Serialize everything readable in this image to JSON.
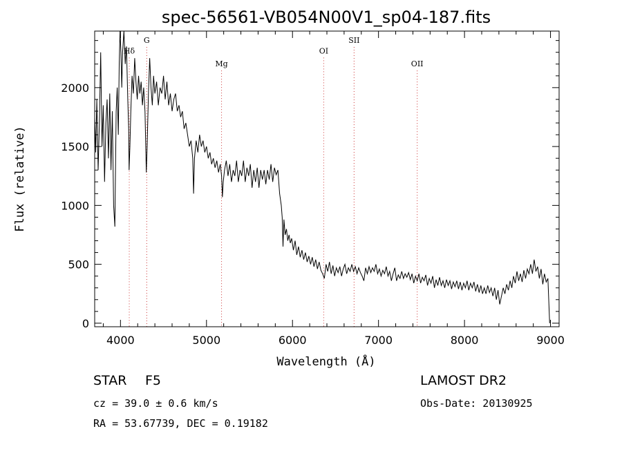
{
  "chart_data": {
    "type": "line",
    "title": "spec-56561-VB054N00V1_sp04-187.fits",
    "xlabel": "Wavelength (Å)",
    "ylabel": "Flux (relative)",
    "xlim": [
      3700,
      9100
    ],
    "ylim": [
      -30,
      2480
    ],
    "xticks": [
      4000,
      5000,
      6000,
      7000,
      8000,
      9000
    ],
    "yticks": [
      0,
      500,
      1000,
      1500,
      2000
    ],
    "grid": false,
    "series": [
      {
        "values": [
          [
            3700,
            1750
          ],
          [
            3712,
            1450
          ],
          [
            3725,
            1900
          ],
          [
            3740,
            1300
          ],
          [
            3755,
            1700
          ],
          [
            3770,
            2300
          ],
          [
            3785,
            1500
          ],
          [
            3800,
            1850
          ],
          [
            3815,
            1200
          ],
          [
            3830,
            1700
          ],
          [
            3845,
            1900
          ],
          [
            3860,
            1400
          ],
          [
            3875,
            1950
          ],
          [
            3890,
            1300
          ],
          [
            3905,
            1800
          ],
          [
            3920,
            1000
          ],
          [
            3935,
            820
          ],
          [
            3950,
            1800
          ],
          [
            3962,
            2000
          ],
          [
            3975,
            1600
          ],
          [
            3985,
            2200
          ],
          [
            3995,
            2480
          ],
          [
            4005,
            2300
          ],
          [
            4015,
            2000
          ],
          [
            4025,
            2300
          ],
          [
            4040,
            2480
          ],
          [
            4055,
            2200
          ],
          [
            4070,
            2350
          ],
          [
            4085,
            1900
          ],
          [
            4095,
            1650
          ],
          [
            4100,
            1300
          ],
          [
            4110,
            1500
          ],
          [
            4120,
            1800
          ],
          [
            4135,
            2100
          ],
          [
            4150,
            1950
          ],
          [
            4165,
            2250
          ],
          [
            4180,
            2050
          ],
          [
            4195,
            1900
          ],
          [
            4210,
            2100
          ],
          [
            4225,
            1950
          ],
          [
            4240,
            2050
          ],
          [
            4255,
            1850
          ],
          [
            4270,
            2000
          ],
          [
            4285,
            1800
          ],
          [
            4300,
            1280
          ],
          [
            4310,
            1500
          ],
          [
            4325,
            1950
          ],
          [
            4340,
            2250
          ],
          [
            4355,
            2000
          ],
          [
            4370,
            1850
          ],
          [
            4385,
            2100
          ],
          [
            4400,
            1950
          ],
          [
            4420,
            2050
          ],
          [
            4440,
            1850
          ],
          [
            4460,
            2000
          ],
          [
            4480,
            1950
          ],
          [
            4500,
            2100
          ],
          [
            4520,
            1900
          ],
          [
            4540,
            2050
          ],
          [
            4560,
            1850
          ],
          [
            4580,
            1950
          ],
          [
            4600,
            1800
          ],
          [
            4620,
            1900
          ],
          [
            4640,
            1950
          ],
          [
            4660,
            1800
          ],
          [
            4680,
            1850
          ],
          [
            4700,
            1750
          ],
          [
            4720,
            1800
          ],
          [
            4740,
            1650
          ],
          [
            4760,
            1700
          ],
          [
            4780,
            1600
          ],
          [
            4800,
            1500
          ],
          [
            4820,
            1550
          ],
          [
            4840,
            1400
          ],
          [
            4850,
            1100
          ],
          [
            4860,
            1400
          ],
          [
            4880,
            1550
          ],
          [
            4900,
            1450
          ],
          [
            4920,
            1600
          ],
          [
            4940,
            1500
          ],
          [
            4960,
            1550
          ],
          [
            4980,
            1450
          ],
          [
            5000,
            1500
          ],
          [
            5020,
            1400
          ],
          [
            5040,
            1450
          ],
          [
            5060,
            1350
          ],
          [
            5080,
            1400
          ],
          [
            5100,
            1320
          ],
          [
            5120,
            1380
          ],
          [
            5140,
            1280
          ],
          [
            5160,
            1350
          ],
          [
            5175,
            1250
          ],
          [
            5185,
            1070
          ],
          [
            5195,
            1200
          ],
          [
            5210,
            1300
          ],
          [
            5230,
            1380
          ],
          [
            5250,
            1250
          ],
          [
            5270,
            1350
          ],
          [
            5290,
            1200
          ],
          [
            5310,
            1300
          ],
          [
            5330,
            1250
          ],
          [
            5350,
            1380
          ],
          [
            5370,
            1200
          ],
          [
            5390,
            1300
          ],
          [
            5410,
            1250
          ],
          [
            5430,
            1380
          ],
          [
            5450,
            1200
          ],
          [
            5470,
            1320
          ],
          [
            5490,
            1250
          ],
          [
            5510,
            1350
          ],
          [
            5530,
            1150
          ],
          [
            5550,
            1300
          ],
          [
            5570,
            1200
          ],
          [
            5590,
            1320
          ],
          [
            5610,
            1150
          ],
          [
            5630,
            1300
          ],
          [
            5650,
            1220
          ],
          [
            5670,
            1300
          ],
          [
            5690,
            1180
          ],
          [
            5710,
            1300
          ],
          [
            5730,
            1220
          ],
          [
            5750,
            1350
          ],
          [
            5770,
            1200
          ],
          [
            5790,
            1320
          ],
          [
            5810,
            1260
          ],
          [
            5830,
            1300
          ],
          [
            5850,
            1100
          ],
          [
            5870,
            1000
          ],
          [
            5880,
            900
          ],
          [
            5890,
            650
          ],
          [
            5900,
            880
          ],
          [
            5915,
            750
          ],
          [
            5930,
            800
          ],
          [
            5945,
            700
          ],
          [
            5960,
            750
          ],
          [
            5975,
            680
          ],
          [
            5990,
            720
          ],
          [
            6010,
            620
          ],
          [
            6030,
            700
          ],
          [
            6050,
            580
          ],
          [
            6070,
            650
          ],
          [
            6090,
            560
          ],
          [
            6110,
            620
          ],
          [
            6130,
            540
          ],
          [
            6150,
            600
          ],
          [
            6170,
            520
          ],
          [
            6190,
            570
          ],
          [
            6210,
            500
          ],
          [
            6230,
            560
          ],
          [
            6250,
            480
          ],
          [
            6270,
            540
          ],
          [
            6290,
            460
          ],
          [
            6310,
            520
          ],
          [
            6330,
            450
          ],
          [
            6350,
            420
          ],
          [
            6370,
            380
          ],
          [
            6390,
            500
          ],
          [
            6410,
            440
          ],
          [
            6430,
            520
          ],
          [
            6450,
            420
          ],
          [
            6470,
            490
          ],
          [
            6490,
            400
          ],
          [
            6510,
            470
          ],
          [
            6530,
            430
          ],
          [
            6550,
            480
          ],
          [
            6570,
            400
          ],
          [
            6590,
            460
          ],
          [
            6610,
            500
          ],
          [
            6630,
            420
          ],
          [
            6650,
            470
          ],
          [
            6670,
            440
          ],
          [
            6690,
            500
          ],
          [
            6710,
            440
          ],
          [
            6730,
            480
          ],
          [
            6750,
            420
          ],
          [
            6770,
            470
          ],
          [
            6790,
            430
          ],
          [
            6810,
            400
          ],
          [
            6830,
            360
          ],
          [
            6850,
            470
          ],
          [
            6870,
            420
          ],
          [
            6890,
            480
          ],
          [
            6910,
            430
          ],
          [
            6930,
            470
          ],
          [
            6950,
            440
          ],
          [
            6970,
            500
          ],
          [
            6990,
            420
          ],
          [
            7010,
            460
          ],
          [
            7030,
            400
          ],
          [
            7050,
            450
          ],
          [
            7070,
            420
          ],
          [
            7090,
            480
          ],
          [
            7110,
            400
          ],
          [
            7130,
            440
          ],
          [
            7150,
            360
          ],
          [
            7170,
            420
          ],
          [
            7190,
            470
          ],
          [
            7210,
            360
          ],
          [
            7230,
            410
          ],
          [
            7250,
            380
          ],
          [
            7270,
            440
          ],
          [
            7290,
            380
          ],
          [
            7310,
            420
          ],
          [
            7330,
            390
          ],
          [
            7350,
            430
          ],
          [
            7370,
            370
          ],
          [
            7390,
            420
          ],
          [
            7410,
            340
          ],
          [
            7430,
            400
          ],
          [
            7450,
            360
          ],
          [
            7470,
            420
          ],
          [
            7490,
            340
          ],
          [
            7510,
            390
          ],
          [
            7530,
            360
          ],
          [
            7550,
            410
          ],
          [
            7570,
            320
          ],
          [
            7590,
            380
          ],
          [
            7610,
            340
          ],
          [
            7630,
            400
          ],
          [
            7650,
            300
          ],
          [
            7670,
            370
          ],
          [
            7690,
            320
          ],
          [
            7710,
            390
          ],
          [
            7730,
            320
          ],
          [
            7750,
            360
          ],
          [
            7770,
            300
          ],
          [
            7790,
            370
          ],
          [
            7810,
            320
          ],
          [
            7830,
            360
          ],
          [
            7850,
            290
          ],
          [
            7870,
            350
          ],
          [
            7890,
            310
          ],
          [
            7910,
            360
          ],
          [
            7930,
            290
          ],
          [
            7950,
            350
          ],
          [
            7970,
            280
          ],
          [
            7990,
            340
          ],
          [
            8010,
            300
          ],
          [
            8030,
            360
          ],
          [
            8050,
            280
          ],
          [
            8070,
            340
          ],
          [
            8090,
            300
          ],
          [
            8110,
            350
          ],
          [
            8130,
            270
          ],
          [
            8150,
            330
          ],
          [
            8170,
            260
          ],
          [
            8190,
            320
          ],
          [
            8210,
            250
          ],
          [
            8230,
            300
          ],
          [
            8250,
            250
          ],
          [
            8270,
            320
          ],
          [
            8290,
            260
          ],
          [
            8310,
            300
          ],
          [
            8330,
            230
          ],
          [
            8350,
            300
          ],
          [
            8370,
            200
          ],
          [
            8390,
            280
          ],
          [
            8410,
            160
          ],
          [
            8430,
            230
          ],
          [
            8450,
            300
          ],
          [
            8470,
            250
          ],
          [
            8490,
            330
          ],
          [
            8510,
            280
          ],
          [
            8530,
            360
          ],
          [
            8550,
            300
          ],
          [
            8570,
            400
          ],
          [
            8590,
            340
          ],
          [
            8610,
            440
          ],
          [
            8630,
            360
          ],
          [
            8650,
            420
          ],
          [
            8670,
            350
          ],
          [
            8690,
            450
          ],
          [
            8710,
            380
          ],
          [
            8730,
            460
          ],
          [
            8750,
            420
          ],
          [
            8770,
            500
          ],
          [
            8790,
            420
          ],
          [
            8810,
            540
          ],
          [
            8830,
            440
          ],
          [
            8850,
            480
          ],
          [
            8870,
            380
          ],
          [
            8890,
            460
          ],
          [
            8910,
            330
          ],
          [
            8930,
            420
          ],
          [
            8950,
            350
          ],
          [
            8970,
            380
          ],
          [
            8990,
            0
          ]
        ]
      }
    ],
    "line_markers": [
      {
        "label": "Hδ",
        "x": 4102,
        "y_label": 2290
      },
      {
        "label": "G",
        "x": 4305,
        "y_label": 2380
      },
      {
        "label": "Mg",
        "x": 5175,
        "y_label": 2180
      },
      {
        "label": "OI",
        "x": 6363,
        "y_label": 2290
      },
      {
        "label": "SII",
        "x": 6716,
        "y_label": 2380
      },
      {
        "label": "OII",
        "x": 7450,
        "y_label": 2180
      }
    ],
    "marker_color": "#cc3333",
    "line_color": "#000000"
  },
  "info": {
    "object_class": "STAR",
    "subclass": "F5",
    "survey": "LAMOST DR2",
    "velocity": "cz = 39.0 ± 0.6 km/s",
    "obs_date": "Obs-Date: 20130925",
    "coords": "RA =  53.67739, DEC =   0.19182"
  }
}
